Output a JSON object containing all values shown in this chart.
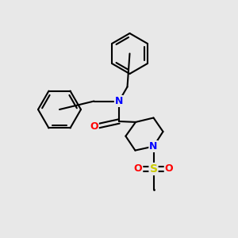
{
  "background_color": "#e8e8e8",
  "atom_colors": {
    "N": "#0000ff",
    "O": "#ff0000",
    "S": "#cccc00",
    "C": "#000000"
  },
  "bond_color": "#000000",
  "bond_width": 1.5,
  "figsize": [
    3.0,
    3.0
  ],
  "dpi": 100
}
